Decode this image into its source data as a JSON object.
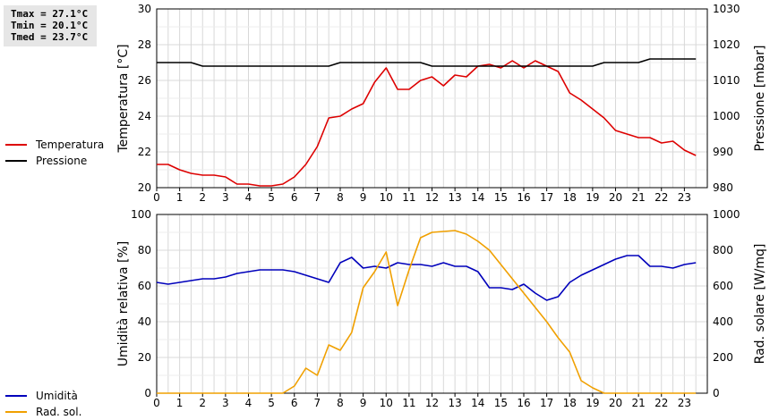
{
  "stats": {
    "tmax": "Tmax = 27.1°C",
    "tmin": "Tmin = 20.1°C",
    "tmed": "Tmed = 23.7°C"
  },
  "colors": {
    "temperature": "#dd0000",
    "pressure": "#000000",
    "humidity": "#0000bb",
    "radiation": "#f0a000",
    "grid": "#d8d8d8"
  },
  "chart_data": [
    {
      "type": "line",
      "x_ticks": [
        "0",
        "1",
        "2",
        "3",
        "4",
        "5",
        "6",
        "7",
        "8",
        "9",
        "10",
        "11",
        "12",
        "13",
        "14",
        "15",
        "16",
        "17",
        "18",
        "19",
        "20",
        "21",
        "22",
        "23"
      ],
      "xlim": [
        0,
        24
      ],
      "ylabel": "Temperatura [°C]",
      "ylim": [
        20,
        30
      ],
      "y_ticks": [
        "20",
        "22",
        "24",
        "26",
        "28",
        "30"
      ],
      "y2label": "Pressione [mbar]",
      "y2lim": [
        980,
        1030
      ],
      "y2_ticks": [
        "980",
        "990",
        "1000",
        "1010",
        "1020",
        "1030"
      ],
      "legend": [
        "Temperatura",
        "Pressione"
      ],
      "series": [
        {
          "name": "Temperatura",
          "axis": "left",
          "x": [
            0,
            0.5,
            1,
            1.5,
            2,
            2.5,
            3,
            3.5,
            4,
            4.5,
            5,
            5.5,
            6,
            6.5,
            7,
            7.5,
            8,
            8.5,
            9,
            9.5,
            10,
            10.5,
            11,
            11.5,
            12,
            12.5,
            13,
            13.5,
            14,
            14.5,
            15,
            15.5,
            16,
            16.5,
            17,
            17.5,
            18,
            18.5,
            19,
            19.5,
            20,
            20.5,
            21,
            21.5,
            22,
            22.5,
            23,
            23.5
          ],
          "values": [
            21.3,
            21.3,
            21.0,
            20.8,
            20.7,
            20.7,
            20.6,
            20.2,
            20.2,
            20.1,
            20.1,
            20.2,
            20.6,
            21.3,
            22.3,
            23.9,
            24.0,
            24.4,
            24.7,
            25.9,
            26.7,
            25.5,
            25.5,
            26.0,
            26.2,
            25.7,
            26.3,
            26.2,
            26.8,
            26.9,
            26.7,
            27.1,
            26.7,
            27.1,
            26.8,
            26.5,
            25.3,
            24.9,
            24.4,
            23.9,
            23.2,
            23.0,
            22.8,
            22.8,
            22.5,
            22.6,
            22.1,
            21.8
          ]
        },
        {
          "name": "Pressione",
          "axis": "right",
          "x": [
            0,
            0.5,
            1,
            1.5,
            2,
            2.5,
            3,
            3.5,
            4,
            4.5,
            5,
            5.5,
            6,
            6.5,
            7,
            7.5,
            8,
            8.5,
            9,
            9.5,
            10,
            10.5,
            11,
            11.5,
            12,
            12.5,
            13,
            13.5,
            14,
            14.5,
            15,
            15.5,
            16,
            16.5,
            17,
            17.5,
            18,
            18.5,
            19,
            19.5,
            20,
            20.5,
            21,
            21.5,
            22,
            22.5,
            23,
            23.5
          ],
          "values": [
            1015,
            1015,
            1015,
            1015,
            1014,
            1014,
            1014,
            1014,
            1014,
            1014,
            1014,
            1014,
            1014,
            1014,
            1014,
            1014,
            1015,
            1015,
            1015,
            1015,
            1015,
            1015,
            1015,
            1015,
            1014,
            1014,
            1014,
            1014,
            1014,
            1014,
            1014,
            1014,
            1014,
            1014,
            1014,
            1014,
            1014,
            1014,
            1014,
            1015,
            1015,
            1015,
            1015,
            1016,
            1016,
            1016,
            1016,
            1016
          ]
        }
      ]
    },
    {
      "type": "line",
      "x_ticks": [
        "0",
        "1",
        "2",
        "3",
        "4",
        "5",
        "6",
        "7",
        "8",
        "9",
        "10",
        "11",
        "12",
        "13",
        "14",
        "15",
        "16",
        "17",
        "18",
        "19",
        "20",
        "21",
        "22",
        "23"
      ],
      "xlim": [
        0,
        24
      ],
      "ylabel": "Umidità relativa [%]",
      "ylim": [
        0,
        100
      ],
      "y_ticks": [
        "0",
        "20",
        "40",
        "60",
        "80",
        "100"
      ],
      "y2label": "Rad. solare [W/mq]",
      "y2lim": [
        0,
        1000
      ],
      "y2_ticks": [
        "0",
        "200",
        "400",
        "600",
        "800",
        "1000"
      ],
      "legend": [
        "Umidità",
        "Rad. sol."
      ],
      "series": [
        {
          "name": "Umidità",
          "axis": "left",
          "x": [
            0,
            0.5,
            1,
            1.5,
            2,
            2.5,
            3,
            3.5,
            4,
            4.5,
            5,
            5.5,
            6,
            6.5,
            7,
            7.5,
            8,
            8.5,
            9,
            9.5,
            10,
            10.5,
            11,
            11.5,
            12,
            12.5,
            13,
            13.5,
            14,
            14.5,
            15,
            15.5,
            16,
            16.5,
            17,
            17.5,
            18,
            18.5,
            19,
            19.5,
            20,
            20.5,
            21,
            21.5,
            22,
            22.5,
            23,
            23.5
          ],
          "values": [
            62,
            61,
            62,
            63,
            64,
            64,
            65,
            67,
            68,
            69,
            69,
            69,
            68,
            66,
            64,
            62,
            73,
            76,
            70,
            71,
            70,
            73,
            72,
            72,
            71,
            73,
            71,
            71,
            68,
            59,
            59,
            58,
            61,
            56,
            52,
            54,
            62,
            66,
            69,
            72,
            75,
            77,
            77,
            71,
            71,
            70,
            72,
            73
          ]
        },
        {
          "name": "Rad. sol.",
          "axis": "right",
          "x": [
            0,
            0.5,
            1,
            1.5,
            2,
            2.5,
            3,
            3.5,
            4,
            4.5,
            5,
            5.5,
            6,
            6.5,
            7,
            7.5,
            8,
            8.5,
            9,
            9.5,
            10,
            10.5,
            11,
            11.5,
            12,
            12.5,
            13,
            13.5,
            14,
            14.5,
            15,
            15.5,
            16,
            16.5,
            17,
            17.5,
            18,
            18.5,
            19,
            19.5,
            20,
            20.5,
            21,
            21.5,
            22,
            22.5,
            23,
            23.5
          ],
          "values": [
            0,
            0,
            0,
            0,
            0,
            0,
            0,
            0,
            0,
            0,
            0,
            0,
            40,
            140,
            100,
            270,
            240,
            340,
            590,
            680,
            790,
            490,
            690,
            870,
            900,
            905,
            910,
            890,
            850,
            800,
            720,
            640,
            560,
            480,
            400,
            310,
            230,
            70,
            30,
            0,
            0,
            0,
            0,
            0,
            0,
            0,
            0,
            0
          ]
        }
      ]
    }
  ]
}
